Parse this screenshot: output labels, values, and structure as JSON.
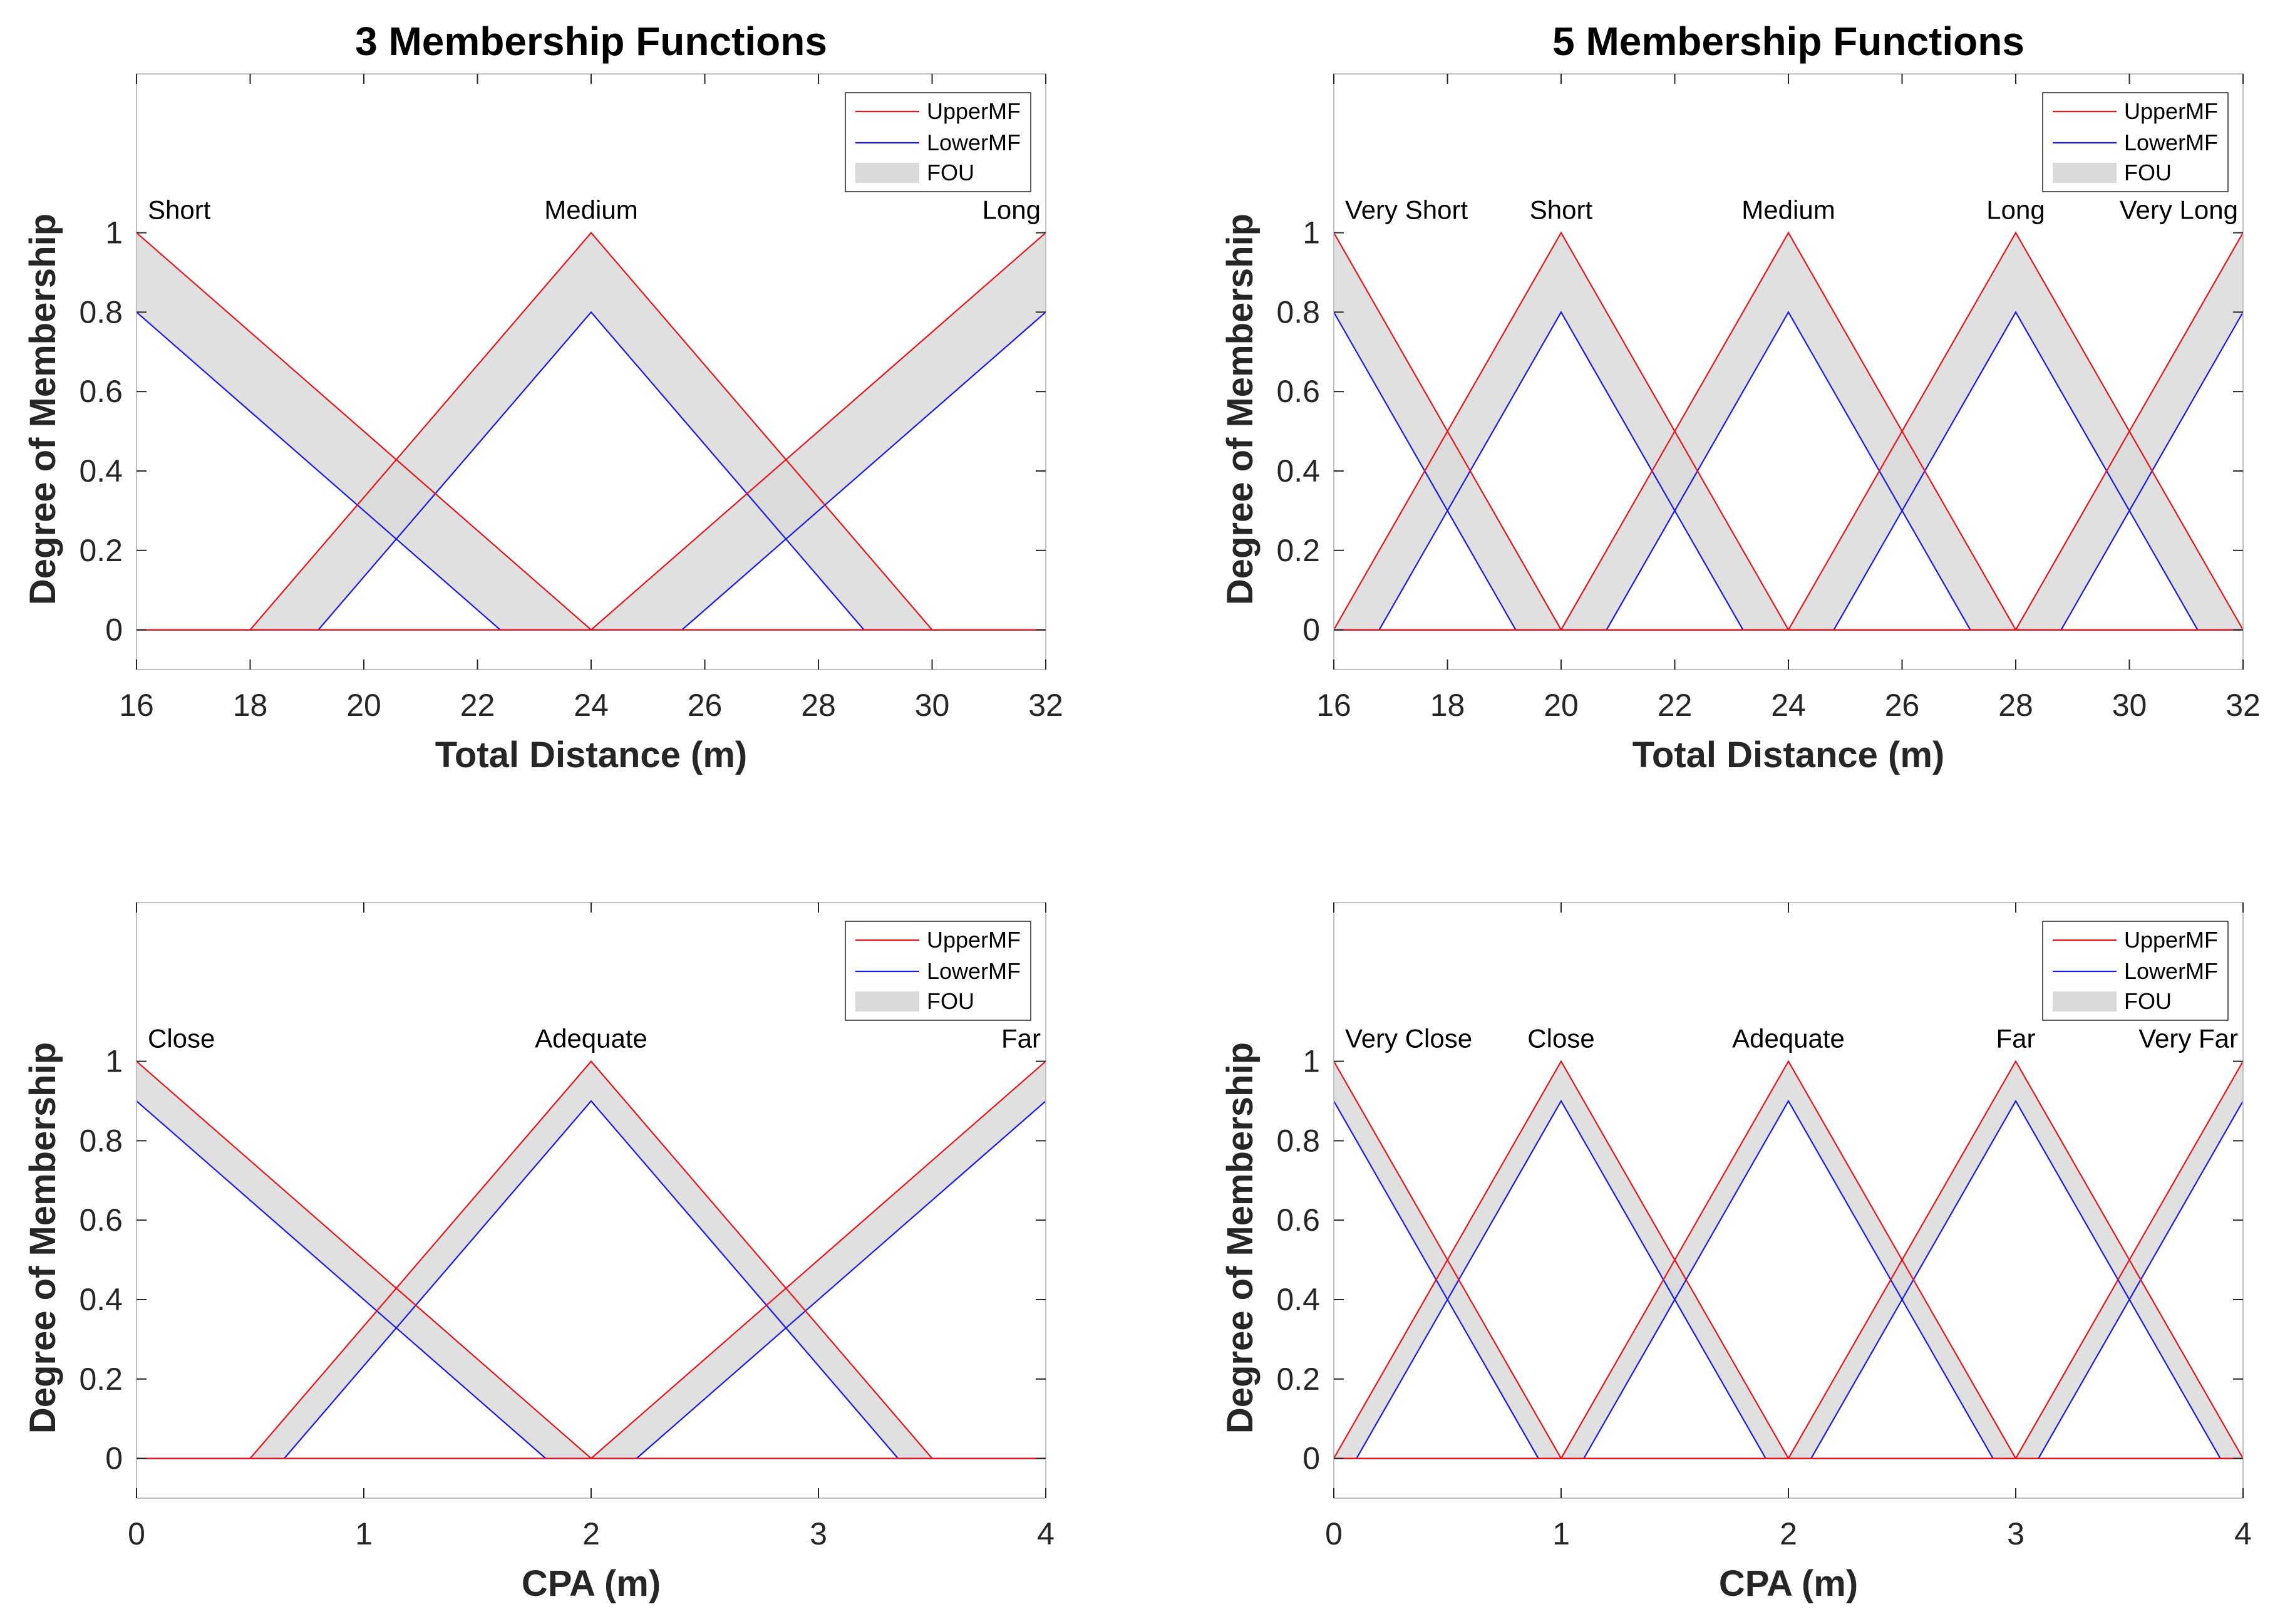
{
  "chart_data": [
    {
      "type": "area",
      "title": "3 Membership Functions",
      "xlabel": "Total Distance (m)",
      "ylabel": "Degree of Membership",
      "xlim": [
        16,
        32
      ],
      "ylim": [
        -0.1,
        1.4
      ],
      "xticks": [
        16,
        18,
        20,
        22,
        24,
        26,
        28,
        30,
        32
      ],
      "yticks": [
        0,
        0.2,
        0.4,
        0.6,
        0.8,
        1
      ],
      "ytick_labels": [
        "0",
        "0.2",
        "0.4",
        "0.6",
        "0.8",
        "1"
      ],
      "legend": [
        "UpperMF",
        "LowerMF",
        "FOU"
      ],
      "legend_position": "top-right",
      "sets": [
        {
          "label": "Short",
          "upper": [
            [
              16,
              1
            ],
            [
              24,
              0
            ],
            [
              32,
              0
            ]
          ],
          "lower": [
            [
              16,
              0.8
            ],
            [
              22.4,
              0
            ],
            [
              32,
              0
            ]
          ]
        },
        {
          "label": "Medium",
          "upper": [
            [
              16,
              0
            ],
            [
              18,
              0
            ],
            [
              24,
              1
            ],
            [
              30,
              0
            ],
            [
              32,
              0
            ]
          ],
          "lower": [
            [
              16,
              0
            ],
            [
              19.2,
              0
            ],
            [
              24,
              0.8
            ],
            [
              28.8,
              0
            ],
            [
              32,
              0
            ]
          ]
        },
        {
          "label": "Long",
          "upper": [
            [
              16,
              0
            ],
            [
              24,
              0
            ],
            [
              32,
              1
            ]
          ],
          "lower": [
            [
              16,
              0
            ],
            [
              25.6,
              0
            ],
            [
              32,
              0.8
            ]
          ]
        }
      ]
    },
    {
      "type": "area",
      "title": "5 Membership Functions",
      "xlabel": "Total Distance (m)",
      "ylabel": "Degree of Membership",
      "xlim": [
        16,
        32
      ],
      "ylim": [
        -0.1,
        1.4
      ],
      "xticks": [
        16,
        18,
        20,
        22,
        24,
        26,
        28,
        30,
        32
      ],
      "yticks": [
        0,
        0.2,
        0.4,
        0.6,
        0.8,
        1
      ],
      "ytick_labels": [
        "0",
        "0.2",
        "0.4",
        "0.6",
        "0.8",
        "1"
      ],
      "legend": [
        "UpperMF",
        "LowerMF",
        "FOU"
      ],
      "legend_position": "top-right",
      "sets": [
        {
          "label": "Very Short",
          "upper": [
            [
              16,
              1
            ],
            [
              20,
              0
            ],
            [
              32,
              0
            ]
          ],
          "lower": [
            [
              16,
              0.8
            ],
            [
              19.2,
              0
            ],
            [
              32,
              0
            ]
          ]
        },
        {
          "label": "Short",
          "upper": [
            [
              16,
              0
            ],
            [
              20,
              1
            ],
            [
              24,
              0
            ],
            [
              32,
              0
            ]
          ],
          "lower": [
            [
              16,
              0
            ],
            [
              16.8,
              0
            ],
            [
              20,
              0.8
            ],
            [
              23.2,
              0
            ],
            [
              32,
              0
            ]
          ]
        },
        {
          "label": "Medium",
          "upper": [
            [
              16,
              0
            ],
            [
              20,
              0
            ],
            [
              24,
              1
            ],
            [
              28,
              0
            ],
            [
              32,
              0
            ]
          ],
          "lower": [
            [
              16,
              0
            ],
            [
              20.8,
              0
            ],
            [
              24,
              0.8
            ],
            [
              27.2,
              0
            ],
            [
              32,
              0
            ]
          ]
        },
        {
          "label": "Long",
          "upper": [
            [
              16,
              0
            ],
            [
              24,
              0
            ],
            [
              28,
              1
            ],
            [
              32,
              0
            ]
          ],
          "lower": [
            [
              16,
              0
            ],
            [
              24.8,
              0
            ],
            [
              28,
              0.8
            ],
            [
              31.2,
              0
            ],
            [
              32,
              0
            ]
          ]
        },
        {
          "label": "Very Long",
          "upper": [
            [
              16,
              0
            ],
            [
              28,
              0
            ],
            [
              32,
              1
            ]
          ],
          "lower": [
            [
              16,
              0
            ],
            [
              28.8,
              0
            ],
            [
              32,
              0.8
            ]
          ]
        }
      ]
    },
    {
      "type": "area",
      "title": "",
      "xlabel": "CPA (m)",
      "ylabel": "Degree of Membership",
      "xlim": [
        0,
        4
      ],
      "ylim": [
        -0.1,
        1.4
      ],
      "xticks": [
        0,
        1,
        2,
        3,
        4
      ],
      "yticks": [
        0,
        0.2,
        0.4,
        0.6,
        0.8,
        1
      ],
      "ytick_labels": [
        "0",
        "0.2",
        "0.4",
        "0.6",
        "0.8",
        "1"
      ],
      "legend": [
        "UpperMF",
        "LowerMF",
        "FOU"
      ],
      "legend_position": "top-right",
      "sets": [
        {
          "label": "Close",
          "upper": [
            [
              0,
              1
            ],
            [
              2,
              0
            ],
            [
              4,
              0
            ]
          ],
          "lower": [
            [
              0,
              0.9
            ],
            [
              1.8,
              0
            ],
            [
              4,
              0
            ]
          ]
        },
        {
          "label": "Adequate",
          "upper": [
            [
              0,
              0
            ],
            [
              0.5,
              0
            ],
            [
              2,
              1
            ],
            [
              3.5,
              0
            ],
            [
              4,
              0
            ]
          ],
          "lower": [
            [
              0,
              0
            ],
            [
              0.65,
              0
            ],
            [
              2,
              0.9
            ],
            [
              3.35,
              0
            ],
            [
              4,
              0
            ]
          ]
        },
        {
          "label": "Far",
          "upper": [
            [
              0,
              0
            ],
            [
              2,
              0
            ],
            [
              4,
              1
            ]
          ],
          "lower": [
            [
              0,
              0
            ],
            [
              2.2,
              0
            ],
            [
              4,
              0.9
            ]
          ]
        }
      ]
    },
    {
      "type": "area",
      "title": "",
      "xlabel": "CPA (m)",
      "ylabel": "Degree of Membership",
      "xlim": [
        0,
        4
      ],
      "ylim": [
        -0.1,
        1.4
      ],
      "xticks": [
        0,
        1,
        2,
        3,
        4
      ],
      "yticks": [
        0,
        0.2,
        0.4,
        0.6,
        0.8,
        1
      ],
      "ytick_labels": [
        "0",
        "0.2",
        "0.4",
        "0.6",
        "0.8",
        "1"
      ],
      "legend": [
        "UpperMF",
        "LowerMF",
        "FOU"
      ],
      "legend_position": "top-right",
      "sets": [
        {
          "label": "Very Close",
          "upper": [
            [
              0,
              1
            ],
            [
              1,
              0
            ],
            [
              4,
              0
            ]
          ],
          "lower": [
            [
              0,
              0.9
            ],
            [
              0.9,
              0
            ],
            [
              4,
              0
            ]
          ]
        },
        {
          "label": "Close",
          "upper": [
            [
              0,
              0
            ],
            [
              1,
              1
            ],
            [
              2,
              0
            ],
            [
              4,
              0
            ]
          ],
          "lower": [
            [
              0,
              0
            ],
            [
              0.1,
              0
            ],
            [
              1,
              0.9
            ],
            [
              1.9,
              0
            ],
            [
              4,
              0
            ]
          ]
        },
        {
          "label": "Adequate",
          "upper": [
            [
              0,
              0
            ],
            [
              1,
              0
            ],
            [
              2,
              1
            ],
            [
              3,
              0
            ],
            [
              4,
              0
            ]
          ],
          "lower": [
            [
              0,
              0
            ],
            [
              1.1,
              0
            ],
            [
              2,
              0.9
            ],
            [
              2.9,
              0
            ],
            [
              4,
              0
            ]
          ]
        },
        {
          "label": "Far",
          "upper": [
            [
              0,
              0
            ],
            [
              2,
              0
            ],
            [
              3,
              1
            ],
            [
              4,
              0
            ]
          ],
          "lower": [
            [
              0,
              0
            ],
            [
              2.1,
              0
            ],
            [
              3,
              0.9
            ],
            [
              3.9,
              0
            ],
            [
              4,
              0
            ]
          ]
        },
        {
          "label": "Very Far",
          "upper": [
            [
              0,
              0
            ],
            [
              3,
              0
            ],
            [
              4,
              1
            ]
          ],
          "lower": [
            [
              0,
              0
            ],
            [
              3.1,
              0
            ],
            [
              4,
              0.9
            ]
          ]
        }
      ]
    }
  ],
  "colors": {
    "upper": "#e8141c",
    "lower": "#1a1ae6",
    "fou": "#d9d9d9",
    "axis": "#262626",
    "frame": "#bfbfbf"
  }
}
